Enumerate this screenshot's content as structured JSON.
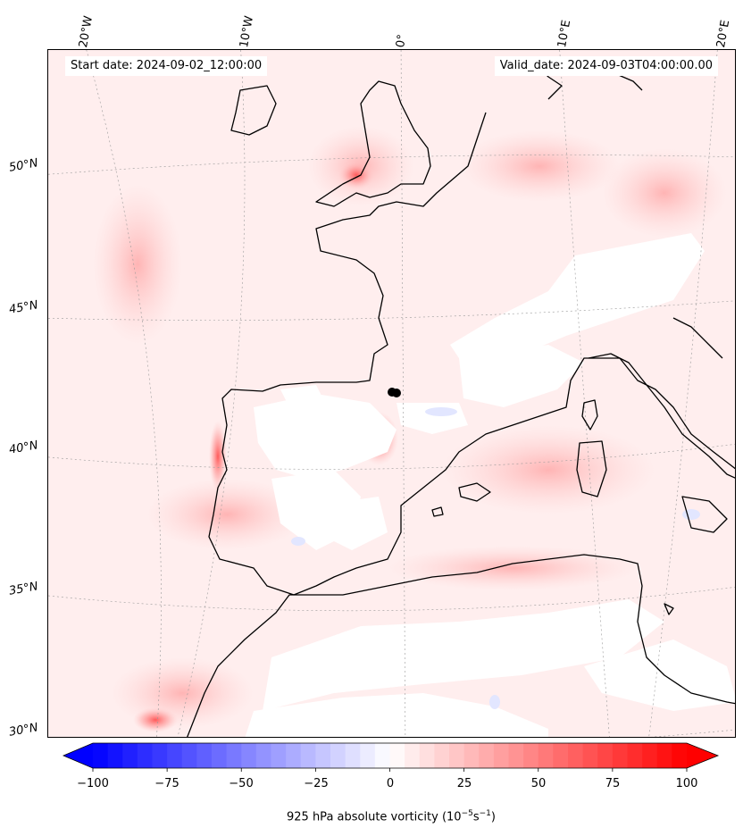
{
  "header": {
    "start_text": "Start date: 2024-09-02_12:00:00",
    "valid_text": "Valid_date: 2024-09-03T04:00:00.00"
  },
  "map": {
    "lon_labels": [
      "20°W",
      "10°W",
      "0°",
      "10°E",
      "20°E"
    ],
    "lat_labels": [
      "50°N",
      "45°N",
      "40°N",
      "35°N",
      "30°N"
    ],
    "land_color": "#ffecec",
    "sea_color": "#fff3f3",
    "coast_color": "#000000",
    "marker_color": "#000000"
  },
  "colorbar": {
    "ticks": [
      "−100",
      "−75",
      "−50",
      "−25",
      "0",
      "25",
      "50",
      "75",
      "100"
    ],
    "label_prefix": "925 hPa absolute vorticity (10",
    "label_exp1": "−5",
    "label_mid": "s",
    "label_exp2": "−1",
    "label_suffix": ")",
    "vmin": -100,
    "vmax": 100,
    "low_color": "#0000ff",
    "mid_color": "#ffffff",
    "high_color": "#ff0000"
  }
}
